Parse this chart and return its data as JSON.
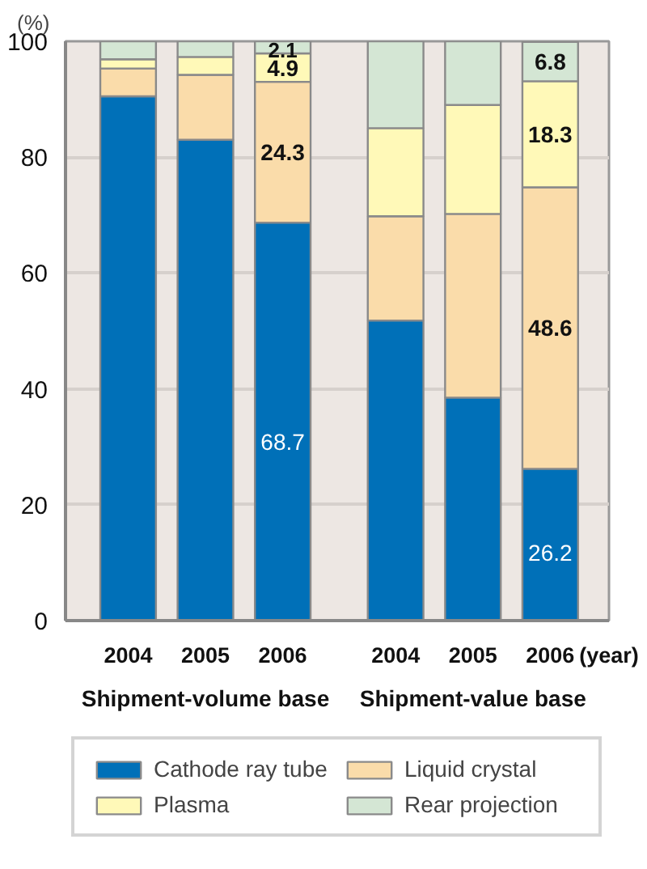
{
  "chart_data": {
    "type": "bar",
    "stacked": true,
    "ylabel": "(%)",
    "xlabel": "(year)",
    "categories": [
      "2004",
      "2005",
      "2006",
      "2004",
      "2005",
      "2006"
    ],
    "series": [
      {
        "name": "Cathode ray tube",
        "color": "#0070b8",
        "values": [
          90.5,
          83.0,
          68.7,
          51.8,
          38.5,
          26.2
        ],
        "value_labels": [
          null,
          null,
          "68.7",
          null,
          null,
          "26.2"
        ]
      },
      {
        "name": "Liquid crystal",
        "color": "#fadcaa",
        "values": [
          4.8,
          11.2,
          24.3,
          18.0,
          31.7,
          48.6
        ],
        "value_labels": [
          null,
          null,
          "24.3",
          null,
          null,
          "48.6"
        ]
      },
      {
        "name": "Plasma",
        "color": "#fff9b8",
        "values": [
          1.6,
          3.1,
          4.9,
          15.2,
          18.8,
          18.3
        ],
        "value_labels": [
          null,
          null,
          "4.9",
          null,
          null,
          "18.3"
        ]
      },
      {
        "name": "Rear projection",
        "color": "#d4e6d4",
        "values": [
          3.1,
          2.7,
          2.1,
          15.0,
          11.0,
          6.8
        ],
        "value_labels": [
          null,
          null,
          "2.1",
          null,
          null,
          "6.8"
        ]
      }
    ],
    "ylim": [
      0,
      100
    ],
    "yticks": [
      0,
      20,
      40,
      60,
      80,
      100
    ],
    "grid": "y",
    "legend": "bottom",
    "annotations": [
      "Shipment-volume base",
      "Shipment-value base"
    ]
  }
}
